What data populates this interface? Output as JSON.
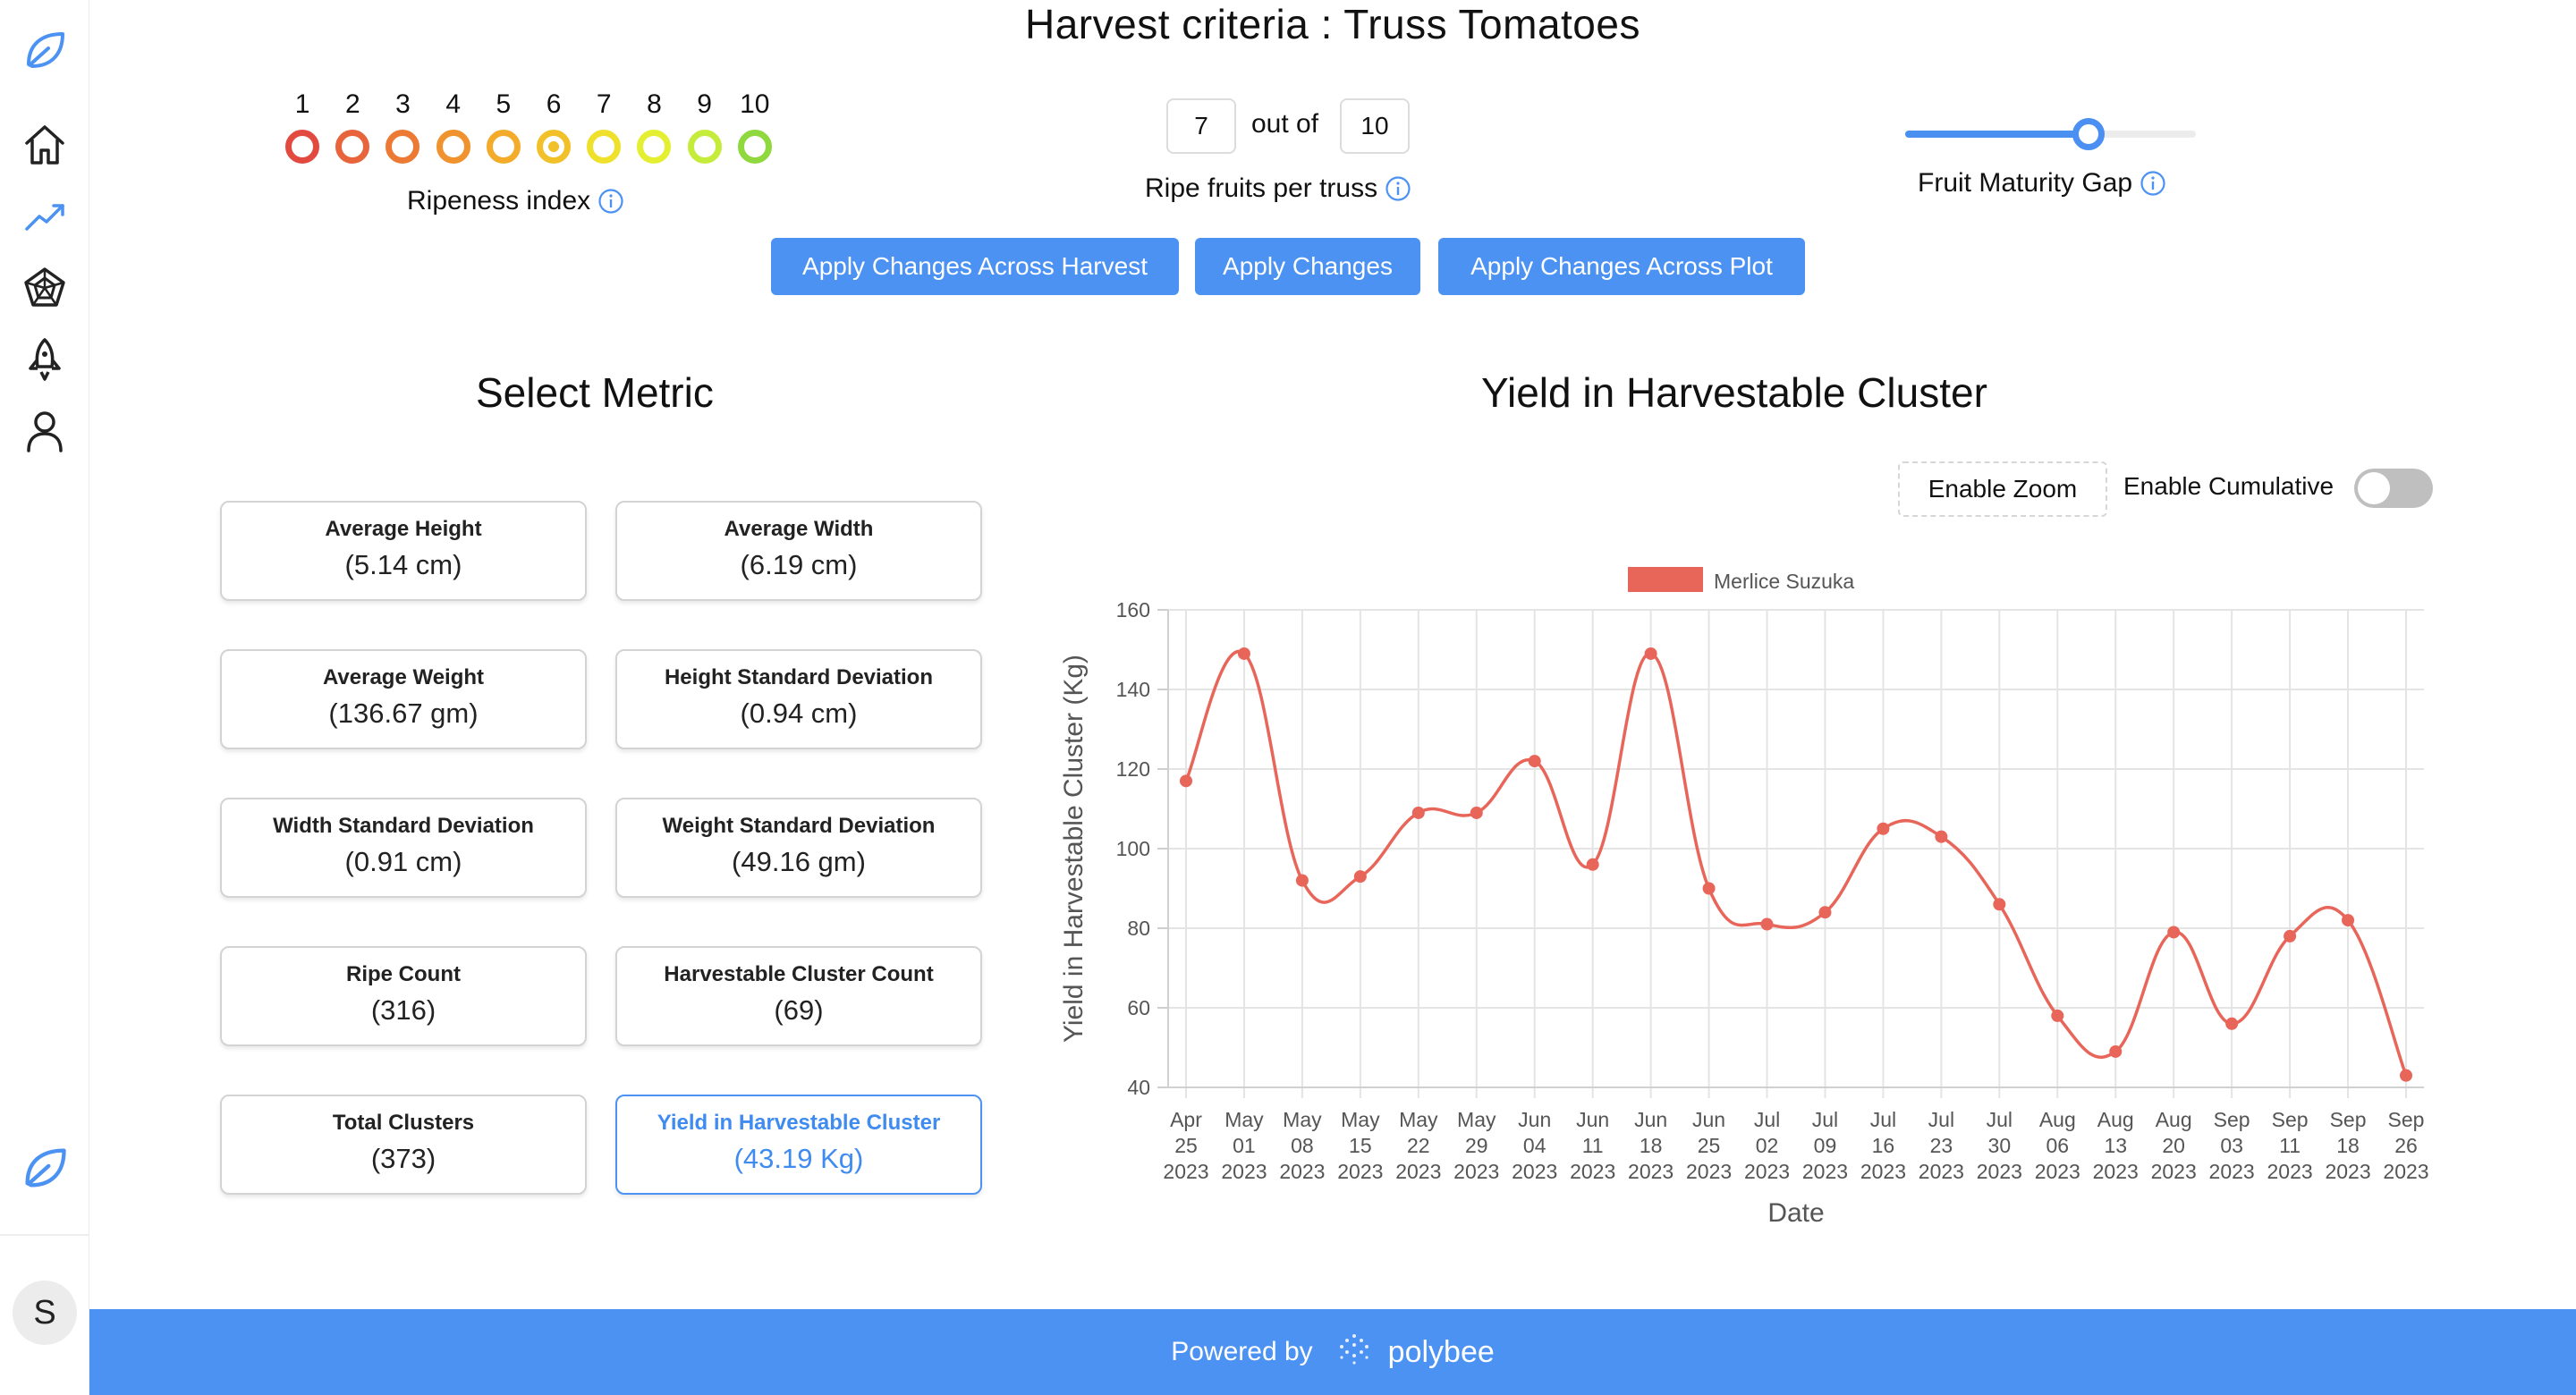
{
  "header": {
    "title": "Harvest criteria : Truss Tomatoes"
  },
  "sidebar": {
    "items": [
      {
        "name": "logo-leaf-icon"
      },
      {
        "name": "home-icon"
      },
      {
        "name": "trend-icon"
      },
      {
        "name": "radar-icon"
      },
      {
        "name": "rocket-icon"
      },
      {
        "name": "user-icon"
      }
    ],
    "avatar_initial": "S"
  },
  "ripeness": {
    "numbers": [
      "1",
      "2",
      "3",
      "4",
      "5",
      "6",
      "7",
      "8",
      "9",
      "10"
    ],
    "colors": [
      "#e34a3f",
      "#e8643a",
      "#ec7a35",
      "#f0922e",
      "#f4ab2a",
      "#f2c12a",
      "#efe02c",
      "#e4ef32",
      "#c5ec3a",
      "#8fd83e"
    ],
    "label": "Ripeness index"
  },
  "ripe_fruits": {
    "value": "7",
    "out_of_label": "out of",
    "total": "10",
    "label": "Ripe fruits per truss"
  },
  "maturity": {
    "label": "Fruit Maturity Gap",
    "value_fraction": 0.63
  },
  "buttons": {
    "apply_harvest": "Apply Changes Across Harvest",
    "apply": "Apply Changes",
    "apply_plot": "Apply Changes Across Plot"
  },
  "metrics": {
    "title": "Select Metric",
    "items": [
      {
        "title": "Average Height",
        "value": "(5.14 cm)"
      },
      {
        "title": "Average Width",
        "value": "(6.19 cm)"
      },
      {
        "title": "Average Weight",
        "value": "(136.67 gm)"
      },
      {
        "title": "Height Standard Deviation",
        "value": "(0.94 cm)"
      },
      {
        "title": "Width Standard Deviation",
        "value": "(0.91 cm)"
      },
      {
        "title": "Weight Standard Deviation",
        "value": "(49.16 gm)"
      },
      {
        "title": "Ripe Count",
        "value": "(316)"
      },
      {
        "title": "Harvestable Cluster Count",
        "value": "(69)"
      },
      {
        "title": "Total Clusters",
        "value": "(373)"
      },
      {
        "title": "Yield in Harvestable Cluster",
        "value": "(43.19 Kg)"
      }
    ],
    "active_index": 9
  },
  "chart_controls": {
    "zoom_label": "Enable Zoom",
    "cumulative_label": "Enable Cumulative",
    "cumulative_on": false
  },
  "chart_data": {
    "type": "line",
    "title": "Yield in Harvestable Cluster",
    "xlabel": "Date",
    "ylabel": "Yield in Harvestable Cluster (Kg)",
    "ylim": [
      40,
      160
    ],
    "yticks": [
      40,
      60,
      80,
      100,
      120,
      140,
      160
    ],
    "grid": true,
    "legend": "top-center",
    "categories": [
      [
        "Apr",
        "25",
        "2023"
      ],
      [
        "May",
        "01",
        "2023"
      ],
      [
        "May",
        "08",
        "2023"
      ],
      [
        "May",
        "15",
        "2023"
      ],
      [
        "May",
        "22",
        "2023"
      ],
      [
        "May",
        "29",
        "2023"
      ],
      [
        "Jun",
        "04",
        "2023"
      ],
      [
        "Jun",
        "11",
        "2023"
      ],
      [
        "Jun",
        "18",
        "2023"
      ],
      [
        "Jun",
        "25",
        "2023"
      ],
      [
        "Jul",
        "02",
        "2023"
      ],
      [
        "Jul",
        "09",
        "2023"
      ],
      [
        "Jul",
        "16",
        "2023"
      ],
      [
        "Jul",
        "23",
        "2023"
      ],
      [
        "Jul",
        "30",
        "2023"
      ],
      [
        "Aug",
        "06",
        "2023"
      ],
      [
        "Aug",
        "13",
        "2023"
      ],
      [
        "Aug",
        "20",
        "2023"
      ],
      [
        "Sep",
        "03",
        "2023"
      ],
      [
        "Sep",
        "11",
        "2023"
      ],
      [
        "Sep",
        "18",
        "2023"
      ],
      [
        "Sep",
        "26",
        "2023"
      ]
    ],
    "series": [
      {
        "name": "Merlice Suzuka",
        "color": "#e8655a",
        "values": [
          117,
          149,
          92,
          93,
          109,
          109,
          122,
          96,
          149,
          90,
          81,
          84,
          105,
          103,
          86,
          58,
          49,
          79,
          56,
          78,
          82,
          43
        ]
      }
    ]
  },
  "footer": {
    "powered_by": "Powered by",
    "brand": "polybee"
  }
}
